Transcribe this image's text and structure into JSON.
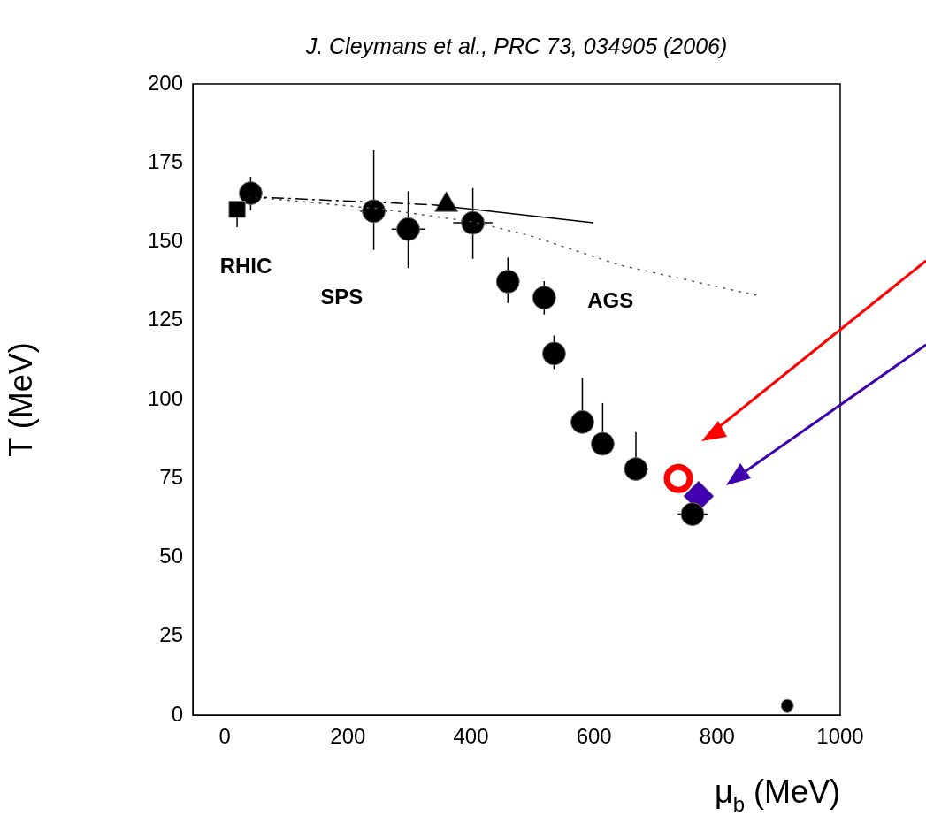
{
  "chart_data": {
    "type": "scatter",
    "title": "J. Cleymans et al., PRC 73, 034905 (2006)",
    "xlabel": "μ$_{b}$ (MeV)",
    "ylabel": "T (MeV)",
    "xlim": [
      -52,
      1000
    ],
    "xticks": [
      0,
      200,
      400,
      600,
      800,
      1000
    ],
    "ylim": [
      0,
      200
    ],
    "yticks": [
      0,
      25,
      50,
      75,
      100,
      125,
      150,
      175,
      200
    ],
    "grid": false,
    "legend": false,
    "series": [
      {
        "type": "line",
        "color": "#000000",
        "line_style": "dashed",
        "marker": "none",
        "x": [
          37,
          340
        ],
        "values": [
          164.3,
          161.7
        ]
      },
      {
        "type": "line",
        "color": "#000000",
        "line_style": "solid",
        "marker": "none",
        "x": [
          340,
          599
        ],
        "values": [
          161.7,
          156
        ]
      },
      {
        "type": "line",
        "color": "#555555",
        "line_style": "dotted",
        "marker": "none",
        "x": [
          37,
          250,
          403,
          495,
          642,
          865
        ],
        "values": [
          164.3,
          160.5,
          156.3,
          152,
          142.6,
          133
        ]
      },
      {
        "color": "#000000",
        "marker": "square",
        "x": [
          20
        ],
        "values": [
          160.3
        ],
        "errors": [
          [
            154.6,
            160.3
          ]
        ]
      },
      {
        "color": "#000000",
        "marker": "circle",
        "x": [
          42,
          242,
          298,
          403,
          460,
          519,
          535,
          581,
          614,
          668,
          760
        ],
        "values": [
          165.4,
          159.7,
          154,
          156,
          137.4,
          132.3,
          114.6,
          92.9,
          86,
          78,
          63.7
        ],
        "errors": [
          [
            160,
            170.6
          ],
          [
            147.4,
            179
          ],
          [
            141.7,
            166
          ],
          [
            144.6,
            167
          ],
          [
            130.6,
            145
          ],
          [
            127,
            137.5
          ],
          [
            109.7,
            120.3
          ],
          [
            92.9,
            106.9
          ],
          [
            86,
            98.9
          ],
          [
            78,
            89.7
          ],
          null
        ],
        "xerrors": [
          null,
          22,
          27,
          32,
          null,
          null,
          null,
          null,
          null,
          20,
          24
        ]
      },
      {
        "color": "#000000",
        "marker": "triangle",
        "x": [
          360
        ],
        "values": [
          161.7
        ]
      },
      {
        "color": "#ff0000",
        "marker": "circle",
        "x": [
          737
        ],
        "values": [
          75
        ]
      },
      {
        "color": "#4000b0",
        "marker": "diamond",
        "x": [
          770
        ],
        "values": [
          69.4
        ]
      },
      {
        "color": "#000000",
        "marker": "circle",
        "x": [
          914
        ],
        "values": [
          3
        ]
      }
    ],
    "annotations": [
      "RHIC",
      "SPS",
      "AGS"
    ]
  }
}
